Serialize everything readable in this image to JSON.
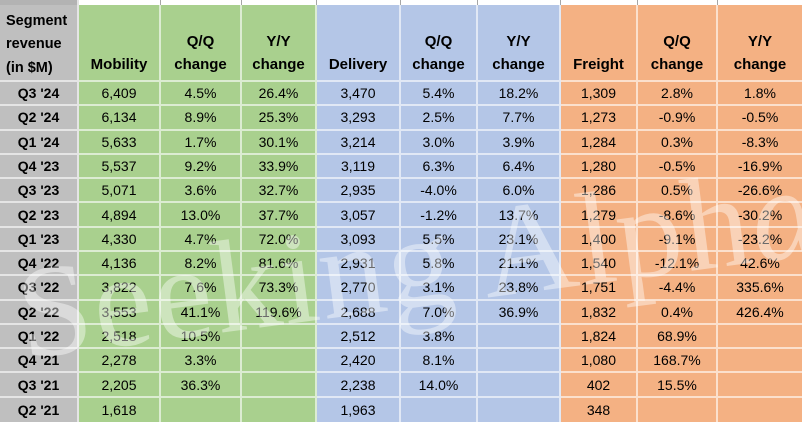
{
  "chart_data": {
    "type": "table",
    "title": "Segment revenue (in $M)",
    "corner_lines": [
      "Segment",
      "revenue",
      "(in $M)"
    ],
    "sub_columns": [
      "Q/Q change",
      "Y/Y change"
    ],
    "categories": [
      "Q3 '24",
      "Q2 '24",
      "Q1 '24",
      "Q4 '23",
      "Q3 '23",
      "Q2 '23",
      "Q1 '23",
      "Q4 '22",
      "Q3 '22",
      "Q2 '22",
      "Q1 '22",
      "Q4 '21",
      "Q3 '21",
      "Q2 '21"
    ],
    "series": [
      {
        "name": "Mobility",
        "key": "mobility",
        "color": "#A9D08E",
        "revenue": [
          "6,409",
          "6,134",
          "5,633",
          "5,537",
          "5,071",
          "4,894",
          "4,330",
          "4,136",
          "3,822",
          "3,553",
          "2,518",
          "2,278",
          "2,205",
          "1,618"
        ],
        "qq_change": [
          "4.5%",
          "8.9%",
          "1.7%",
          "9.2%",
          "3.6%",
          "13.0%",
          "4.7%",
          "8.2%",
          "7.6%",
          "41.1%",
          "10.5%",
          "3.3%",
          "36.3%",
          ""
        ],
        "yy_change": [
          "26.4%",
          "25.3%",
          "30.1%",
          "33.9%",
          "32.7%",
          "37.7%",
          "72.0%",
          "81.6%",
          "73.3%",
          "119.6%",
          "",
          "",
          "",
          ""
        ]
      },
      {
        "name": "Delivery",
        "key": "delivery",
        "color": "#B4C6E7",
        "revenue": [
          "3,470",
          "3,293",
          "3,214",
          "3,119",
          "2,935",
          "3,057",
          "3,093",
          "2,931",
          "2,770",
          "2,688",
          "2,512",
          "2,420",
          "2,238",
          "1,963"
        ],
        "qq_change": [
          "5.4%",
          "2.5%",
          "3.0%",
          "6.3%",
          "-4.0%",
          "-1.2%",
          "5.5%",
          "5.8%",
          "3.1%",
          "7.0%",
          "3.8%",
          "8.1%",
          "14.0%",
          ""
        ],
        "yy_change": [
          "18.2%",
          "7.7%",
          "3.9%",
          "6.4%",
          "6.0%",
          "13.7%",
          "23.1%",
          "21.1%",
          "23.8%",
          "36.9%",
          "",
          "",
          "",
          ""
        ]
      },
      {
        "name": "Freight",
        "key": "freight",
        "color": "#F4B183",
        "revenue": [
          "1,309",
          "1,273",
          "1,284",
          "1,280",
          "1,286",
          "1,279",
          "1,400",
          "1,540",
          "1,751",
          "1,832",
          "1,824",
          "1,080",
          "402",
          "348"
        ],
        "qq_change": [
          "2.8%",
          "-0.9%",
          "0.3%",
          "-0.5%",
          "0.5%",
          "-8.6%",
          "-9.1%",
          "-12.1%",
          "-4.4%",
          "0.4%",
          "68.9%",
          "168.7%",
          "15.5%",
          ""
        ],
        "yy_change": [
          "1.8%",
          "-0.5%",
          "-8.3%",
          "-16.9%",
          "-26.6%",
          "-30.2%",
          "-23.2%",
          "42.6%",
          "335.6%",
          "426.4%",
          "",
          "",
          "",
          ""
        ]
      }
    ],
    "layout_hints": {
      "row_label_background": "#BFBFBF",
      "gridline_color": "rgba(255,255,255,0.6)"
    }
  },
  "watermark": {
    "text": "Seeking Alph",
    "alpha": "α"
  }
}
